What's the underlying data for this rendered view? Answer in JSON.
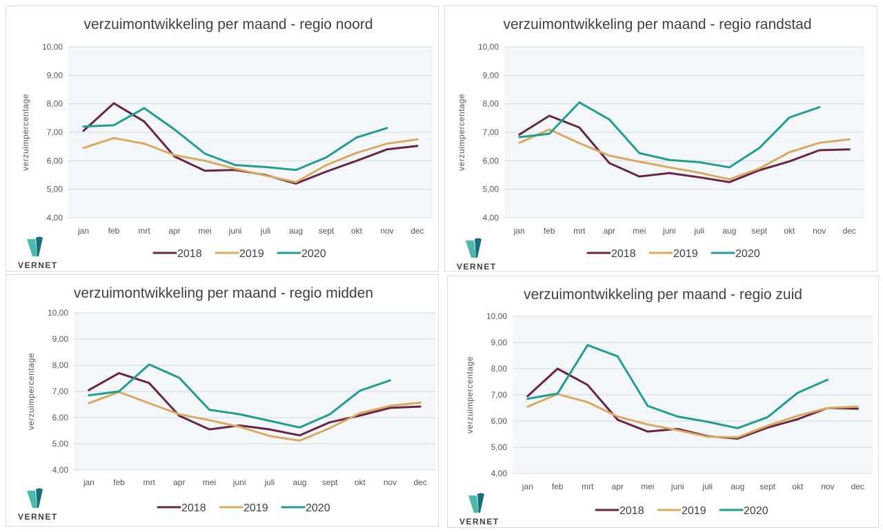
{
  "colors": {
    "2018": "#6b2345",
    "2019": "#d9a95e",
    "2020": "#1f9c94",
    "plot_bg": "#f3f7fa",
    "grid": "#d4d9dd"
  },
  "logo": {
    "text": "VERNET",
    "icon": "vernet-v-logo-icon"
  },
  "chart_data": [
    {
      "type": "line",
      "title": "verzuimontwikkeling per maand - regio noord",
      "xlabel": "",
      "ylabel": "verzuimpercentage",
      "ylim": [
        4,
        10
      ],
      "yticks": [
        "4,00",
        "5,00",
        "6,00",
        "7,00",
        "8,00",
        "9,00",
        "10,00"
      ],
      "categories": [
        "jan",
        "feb",
        "mrt",
        "apr",
        "mei",
        "juni",
        "juli",
        "aug",
        "sept",
        "okt",
        "nov",
        "dec"
      ],
      "grid": true,
      "legend": "bottom",
      "series": [
        {
          "name": "2018",
          "values": [
            7.05,
            8.02,
            7.38,
            6.15,
            5.65,
            5.68,
            5.5,
            5.2,
            5.62,
            6.0,
            6.4,
            6.52
          ]
        },
        {
          "name": "2019",
          "values": [
            6.45,
            6.8,
            6.6,
            6.2,
            6.0,
            5.72,
            5.48,
            5.25,
            5.85,
            6.28,
            6.6,
            6.75
          ]
        },
        {
          "name": "2020",
          "values": [
            7.2,
            7.25,
            7.85,
            7.1,
            6.25,
            5.85,
            5.78,
            5.68,
            6.12,
            6.82,
            7.15
          ]
        }
      ]
    },
    {
      "type": "line",
      "title": "verzuimontwikkeling per maand - regio randstad",
      "xlabel": "",
      "ylabel": "verzuimpercentage",
      "ylim": [
        4,
        10
      ],
      "yticks": [
        "4,00",
        "5,00",
        "6,00",
        "7,00",
        "8,00",
        "9,00",
        "10,00"
      ],
      "categories": [
        "jan",
        "feb",
        "mrt",
        "apr",
        "mei",
        "juni",
        "juli",
        "aug",
        "sept",
        "okt",
        "nov",
        "dec"
      ],
      "grid": true,
      "legend": "bottom",
      "series": [
        {
          "name": "2018",
          "values": [
            6.92,
            7.58,
            7.17,
            5.92,
            5.45,
            5.57,
            5.42,
            5.25,
            5.67,
            5.98,
            6.37,
            6.4
          ]
        },
        {
          "name": "2019",
          "values": [
            6.63,
            7.1,
            6.62,
            6.18,
            5.97,
            5.77,
            5.58,
            5.35,
            5.73,
            6.3,
            6.63,
            6.75
          ]
        },
        {
          "name": "2020",
          "values": [
            6.83,
            6.95,
            8.05,
            7.45,
            6.27,
            6.03,
            5.95,
            5.77,
            6.45,
            7.52,
            7.88
          ]
        }
      ]
    },
    {
      "type": "line",
      "title": "verzuimontwikkeling per maand - regio midden",
      "xlabel": "",
      "ylabel": "verzuimpercentage",
      "ylim": [
        4,
        10
      ],
      "yticks": [
        "4,00",
        "5,00",
        "6,00",
        "7,00",
        "8,00",
        "9,00",
        "10,00"
      ],
      "categories": [
        "jan",
        "feb",
        "mrt",
        "apr",
        "mei",
        "juni",
        "juli",
        "aug",
        "sept",
        "okt",
        "nov",
        "dec"
      ],
      "grid": true,
      "legend": "bottom",
      "series": [
        {
          "name": "2018",
          "values": [
            7.05,
            7.7,
            7.32,
            6.07,
            5.55,
            5.7,
            5.55,
            5.32,
            5.82,
            6.08,
            6.37,
            6.42
          ]
        },
        {
          "name": "2019",
          "values": [
            6.55,
            6.98,
            6.55,
            6.13,
            5.9,
            5.65,
            5.3,
            5.12,
            5.6,
            6.17,
            6.45,
            6.57
          ]
        },
        {
          "name": "2020",
          "values": [
            6.85,
            7.0,
            8.03,
            7.52,
            6.3,
            6.13,
            5.88,
            5.62,
            6.13,
            7.03,
            7.42
          ]
        }
      ]
    },
    {
      "type": "line",
      "title": "verzuimontwikkeling per maand - regio zuid",
      "xlabel": "",
      "ylabel": "verzuimpercentage",
      "ylim": [
        4,
        10
      ],
      "yticks": [
        "4,00",
        "5,00",
        "6,00",
        "7,00",
        "8,00",
        "9,00",
        "10,00"
      ],
      "categories": [
        "jan",
        "feb",
        "mrt",
        "apr",
        "mei",
        "juni",
        "juli",
        "aug",
        "sept",
        "okt",
        "nov",
        "dec"
      ],
      "grid": true,
      "legend": "bottom",
      "series": [
        {
          "name": "2018",
          "values": [
            6.95,
            8.0,
            7.38,
            6.05,
            5.6,
            5.7,
            5.42,
            5.33,
            5.75,
            6.07,
            6.5,
            6.47
          ]
        },
        {
          "name": "2019",
          "values": [
            6.55,
            7.03,
            6.72,
            6.17,
            5.87,
            5.65,
            5.4,
            5.38,
            5.82,
            6.2,
            6.5,
            6.55
          ]
        },
        {
          "name": "2020",
          "values": [
            6.85,
            7.05,
            8.9,
            8.47,
            6.58,
            6.17,
            5.97,
            5.73,
            6.15,
            7.08,
            7.58
          ]
        }
      ]
    }
  ]
}
